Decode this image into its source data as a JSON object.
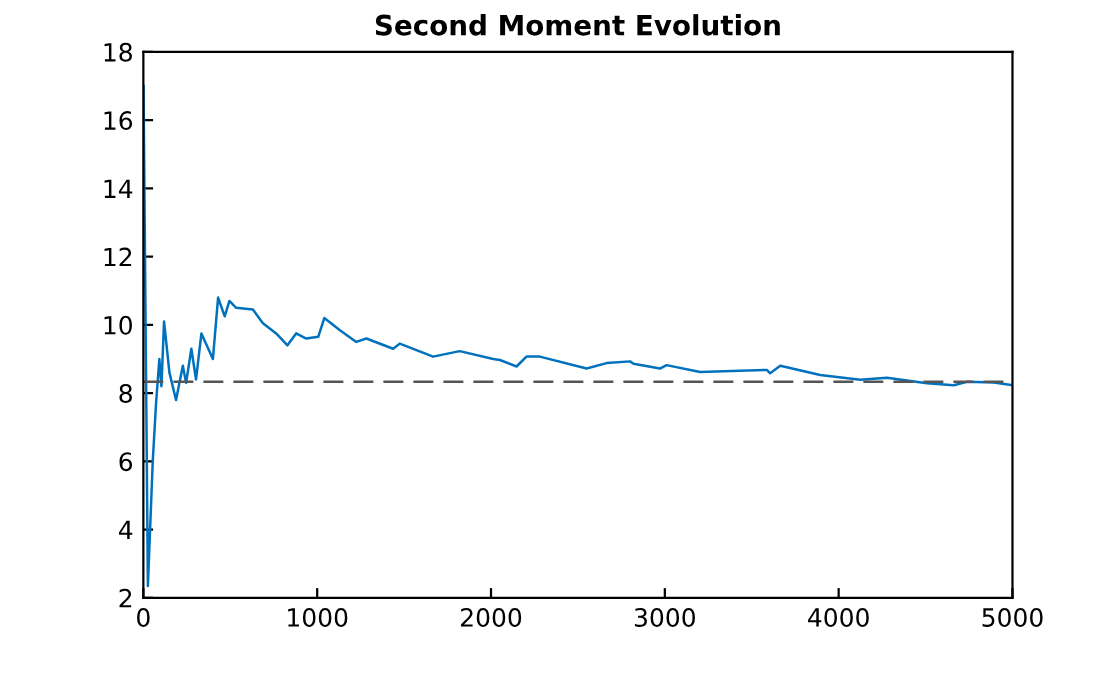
{
  "chart_data": {
    "type": "line",
    "title": "Second Moment Evolution",
    "series": [
      {
        "color": "#0072bd",
        "x": [
          1,
          26,
          54,
          73,
          92,
          104,
          119,
          150,
          188,
          227,
          246,
          276,
          303,
          334,
          400,
          430,
          468,
          495,
          534,
          630,
          688,
          764,
          829,
          879,
          937,
          1006,
          1041,
          1129,
          1225,
          1283,
          1437,
          1475,
          1667,
          1820,
          2013,
          2051,
          2147,
          2204,
          2281,
          2550,
          2665,
          2800,
          2820,
          2972,
          3010,
          3203,
          3587,
          3606,
          3664,
          3894,
          4124,
          4278,
          4508,
          4662,
          4739,
          4892,
          5000
        ],
        "values": [
          17,
          2.35,
          6.0,
          7.7,
          9.0,
          8.2,
          10.1,
          8.6,
          7.8,
          8.8,
          8.3,
          9.3,
          8.4,
          9.75,
          9.0,
          10.8,
          10.25,
          10.7,
          10.5,
          10.45,
          10.05,
          9.75,
          9.4,
          9.75,
          9.6,
          9.65,
          10.2,
          9.85,
          9.5,
          9.6,
          9.3,
          9.45,
          9.07,
          9.23,
          9.0,
          8.97,
          8.78,
          9.07,
          9.07,
          8.72,
          8.88,
          8.93,
          8.86,
          8.72,
          8.82,
          8.62,
          8.68,
          8.58,
          8.8,
          8.53,
          8.39,
          8.45,
          8.29,
          8.23,
          8.33,
          8.31,
          8.23
        ]
      }
    ],
    "ref_lines": [
      {
        "axis": "y",
        "value": 8.33,
        "color": "#555555",
        "line_style": "dashed"
      }
    ],
    "xlim": [
      0,
      5000
    ],
    "xticks": [
      0,
      1000,
      2000,
      3000,
      4000,
      5000
    ],
    "ylim": [
      2,
      18
    ],
    "yticks": [
      2,
      4,
      6,
      8,
      10,
      12,
      14,
      16,
      18
    ],
    "grid": false,
    "legend": false
  }
}
